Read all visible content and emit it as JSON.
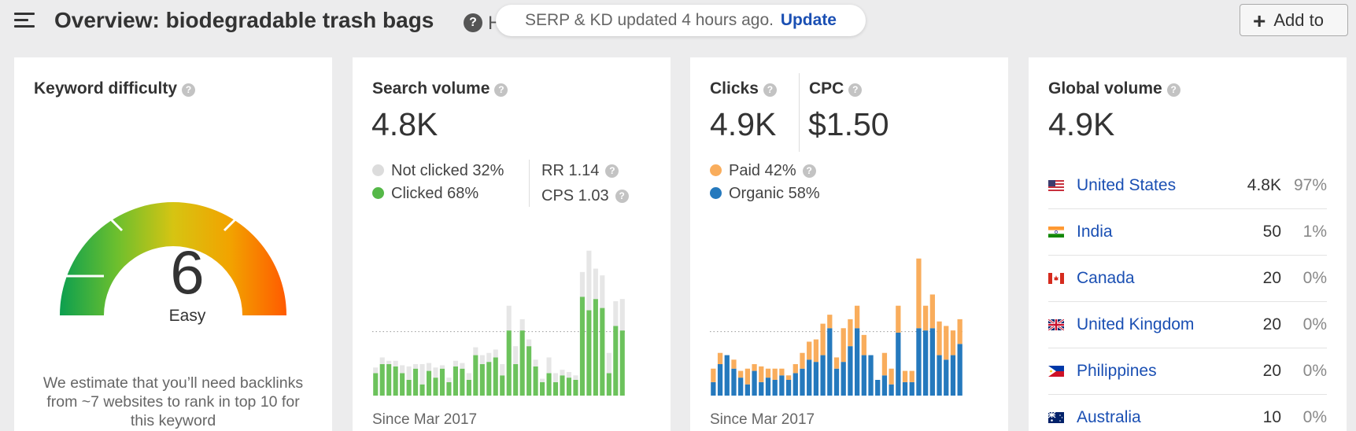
{
  "header": {
    "title": "Overview: biodegradable trash bags",
    "title_trail": "H",
    "toast_text": "SERP & KD updated 4 hours ago.",
    "toast_link": "Update",
    "add_button_label": "Add to"
  },
  "kd": {
    "title": "Keyword difficulty",
    "value": "6",
    "label": "Easy",
    "description": "We estimate that you’ll need backlinks from ~7 websites to rank in top 10 for this keyword"
  },
  "search_volume": {
    "title": "Search volume",
    "value": "4.8K",
    "not_clicked": "Not clicked 32%",
    "clicked": "Clicked 68%",
    "rr": "RR 1.14",
    "cps": "CPS 1.03",
    "since": "Since Mar 2017",
    "colors": {
      "clicked": "#6cc25c",
      "not_clicked": "#e6e6e6"
    }
  },
  "clicks": {
    "clicks_title": "Clicks",
    "clicks_value": "4.9K",
    "cpc_title": "CPC",
    "cpc_value": "$1.50",
    "paid": "Paid 42%",
    "organic": "Organic 58%",
    "since": "Since Mar 2017",
    "colors": {
      "organic": "#2579bd",
      "paid": "#f9ad5c"
    }
  },
  "global_volume": {
    "title": "Global volume",
    "value": "4.9K",
    "countries": [
      {
        "name": "United States",
        "volume": "4.8K",
        "share": "97%",
        "flag": "us-flag-icon"
      },
      {
        "name": "India",
        "volume": "50",
        "share": "1%",
        "flag": "india-flag-icon"
      },
      {
        "name": "Canada",
        "volume": "20",
        "share": "0%",
        "flag": "canada-flag-icon"
      },
      {
        "name": "United Kingdom",
        "volume": "20",
        "share": "0%",
        "flag": "uk-flag-icon"
      },
      {
        "name": "Philippines",
        "volume": "20",
        "share": "0%",
        "flag": "philippines-flag-icon"
      },
      {
        "name": "Australia",
        "volume": "10",
        "share": "0%",
        "flag": "australia-flag-icon"
      }
    ]
  },
  "chart_data": [
    {
      "type": "bar",
      "stacked": true,
      "ylim": [
        0,
        140
      ],
      "reference_line": 57,
      "series": [
        {
          "name": "Clicked",
          "values": [
            20,
            28,
            28,
            26,
            20,
            14,
            24,
            10,
            22,
            16,
            24,
            12,
            26,
            24,
            14,
            36,
            28,
            30,
            34,
            18,
            58,
            28,
            58,
            44,
            26,
            12,
            20,
            12,
            18,
            16,
            14,
            88,
            76,
            86,
            78,
            20,
            62,
            58
          ]
        },
        {
          "name": "Not clicked",
          "values": [
            5,
            6,
            3,
            5,
            7,
            12,
            4,
            18,
            7,
            9,
            3,
            4,
            5,
            5,
            6,
            7,
            8,
            8,
            7,
            10,
            22,
            16,
            10,
            6,
            6,
            3,
            14,
            8,
            5,
            5,
            4,
            22,
            53,
            27,
            29,
            18,
            22,
            28
          ]
        }
      ]
    },
    {
      "type": "bar",
      "stacked": true,
      "ylim": [
        0,
        140
      ],
      "reference_line": 57,
      "series": [
        {
          "name": "Organic",
          "values": [
            12,
            28,
            36,
            24,
            16,
            10,
            22,
            12,
            16,
            14,
            18,
            14,
            20,
            24,
            32,
            30,
            36,
            60,
            24,
            30,
            44,
            60,
            36,
            36,
            14,
            18,
            10,
            56,
            12,
            12,
            60,
            58,
            60,
            36,
            32,
            36,
            46
          ]
        },
        {
          "name": "Paid",
          "values": [
            12,
            10,
            0,
            8,
            6,
            14,
            6,
            14,
            8,
            10,
            6,
            4,
            8,
            14,
            16,
            20,
            28,
            12,
            10,
            30,
            24,
            20,
            18,
            0,
            0,
            20,
            14,
            24,
            10,
            10,
            62,
            22,
            30,
            30,
            30,
            22,
            22
          ]
        }
      ]
    }
  ]
}
